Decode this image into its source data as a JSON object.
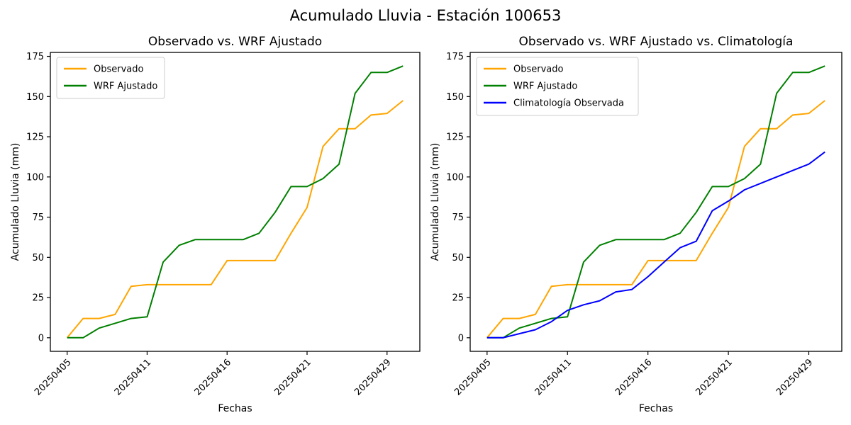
{
  "suptitle": "Acumulado Lluvia - Estación 100653",
  "chart_data": [
    {
      "type": "line",
      "title": "Observado vs. WRF Ajustado",
      "xlabel": "Fechas",
      "ylabel": "Acumulado Lluvia (mm)",
      "n_points": 22,
      "x_tick_positions": [
        0,
        5,
        10,
        15,
        20
      ],
      "x_tick_labels": [
        "20250405",
        "20250411",
        "20250416",
        "20250421",
        "20250429"
      ],
      "y_ticks": [
        0,
        25,
        50,
        75,
        100,
        125,
        150,
        175
      ],
      "xlim": [
        -1.05,
        22.05
      ],
      "ylim": [
        -8.45,
        177.45
      ],
      "grid": false,
      "legend_position": "upper-left",
      "series": [
        {
          "name": "Observado",
          "color": "#ffa500",
          "values": [
            0,
            12,
            12,
            14.5,
            32,
            33,
            33,
            33,
            33,
            33,
            48,
            48,
            48,
            48,
            65,
            81,
            119,
            130,
            130,
            138.5,
            139.5,
            147.5
          ]
        },
        {
          "name": "WRF Ajustado",
          "color": "#008000",
          "values": [
            0,
            0,
            6,
            9,
            12,
            13,
            47,
            57.5,
            61,
            61,
            61,
            61,
            65,
            78,
            94,
            94,
            99,
            108,
            152,
            165,
            165,
            169
          ]
        }
      ]
    },
    {
      "type": "line",
      "title": "Observado vs. WRF Ajustado vs. Climatología",
      "xlabel": "Fechas",
      "ylabel": "Acumulado Lluvia (mm)",
      "n_points": 22,
      "x_tick_positions": [
        0,
        5,
        10,
        15,
        20
      ],
      "x_tick_labels": [
        "20250405",
        "20250411",
        "20250416",
        "20250421",
        "20250429"
      ],
      "y_ticks": [
        0,
        25,
        50,
        75,
        100,
        125,
        150,
        175
      ],
      "xlim": [
        -1.05,
        22.05
      ],
      "ylim": [
        -8.45,
        177.45
      ],
      "grid": false,
      "legend_position": "upper-left",
      "series": [
        {
          "name": "Observado",
          "color": "#ffa500",
          "values": [
            0,
            12,
            12,
            14.5,
            32,
            33,
            33,
            33,
            33,
            33,
            48,
            48,
            48,
            48,
            65,
            81,
            119,
            130,
            130,
            138.5,
            139.5,
            147.5
          ]
        },
        {
          "name": "WRF Ajustado",
          "color": "#008000",
          "values": [
            0,
            0,
            6,
            9,
            12,
            13,
            47,
            57.5,
            61,
            61,
            61,
            61,
            65,
            78,
            94,
            94,
            99,
            108,
            152,
            165,
            165,
            169
          ]
        },
        {
          "name": "Climatología Observada",
          "color": "#0000ff",
          "values": [
            0,
            0,
            2.5,
            5,
            10,
            17,
            20.5,
            23,
            28.5,
            30,
            38,
            47,
            56,
            60,
            79,
            85,
            92,
            96,
            100,
            104,
            108,
            115.5
          ]
        }
      ]
    }
  ]
}
